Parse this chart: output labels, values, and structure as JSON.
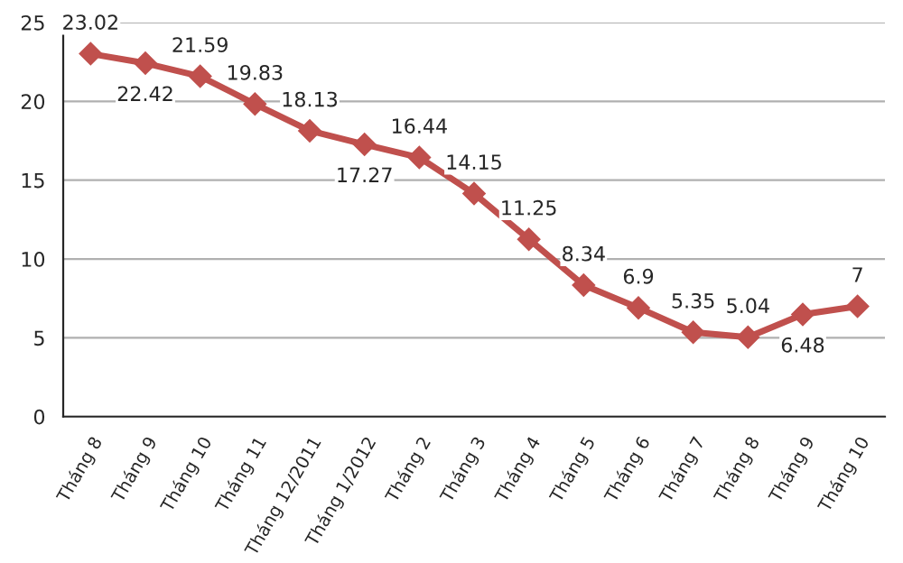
{
  "chart_data": {
    "type": "line",
    "categories": [
      "Tháng 8",
      "Tháng 9",
      "Tháng 10",
      "Tháng 11",
      "Tháng 12/2011",
      "Tháng 1/2012",
      "Tháng 2",
      "Tháng 3",
      "Tháng 4",
      "Tháng 5",
      "Tháng 6",
      "Tháng 7",
      "Tháng 8",
      "Tháng 9",
      "Tháng 10"
    ],
    "series": [
      {
        "color": "#c0504d",
        "values": [
          23.02,
          22.42,
          21.59,
          19.83,
          18.13,
          17.27,
          16.44,
          14.15,
          11.25,
          8.34,
          6.9,
          5.35,
          5.04,
          6.48,
          7
        ]
      }
    ],
    "ylim": [
      0,
      25
    ],
    "yticks": [
      0,
      5,
      10,
      15,
      20,
      25
    ],
    "grid": "y",
    "marker": "diamond",
    "line_style": "solid",
    "data_labels": true,
    "legend": false
  }
}
